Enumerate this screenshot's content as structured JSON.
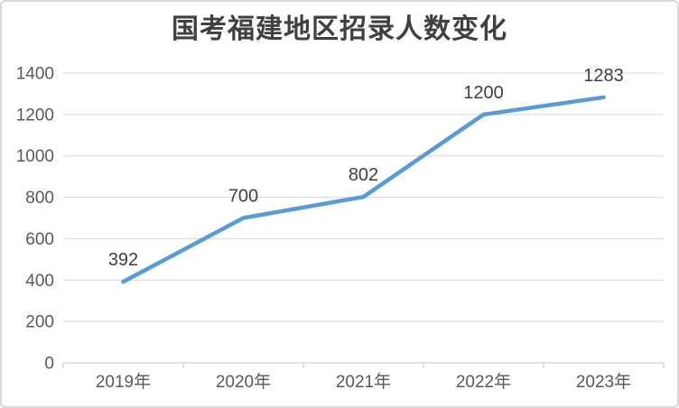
{
  "chart_data": {
    "type": "line",
    "title": "国考福建地区招录人数变化",
    "categories": [
      "2019年",
      "2020年",
      "2021年",
      "2022年",
      "2023年"
    ],
    "values": [
      392,
      700,
      802,
      1200,
      1283
    ],
    "data_labels": [
      "392",
      "700",
      "802",
      "1200",
      "1283"
    ],
    "xlabel": "",
    "ylabel": "",
    "ylim": [
      0,
      1400
    ],
    "yticks": [
      0,
      200,
      400,
      600,
      800,
      1000,
      1200,
      1400
    ],
    "grid": true,
    "legend_position": "none",
    "colors": {
      "line": "#5b9bd5",
      "gridline": "#d9d9d9",
      "axis_line": "#d9d9d9",
      "axis_tick_label": "#595959",
      "data_label": "#404040",
      "title": "#404040",
      "background": "#ffffff",
      "frame_border": "#d9d9d9"
    }
  }
}
